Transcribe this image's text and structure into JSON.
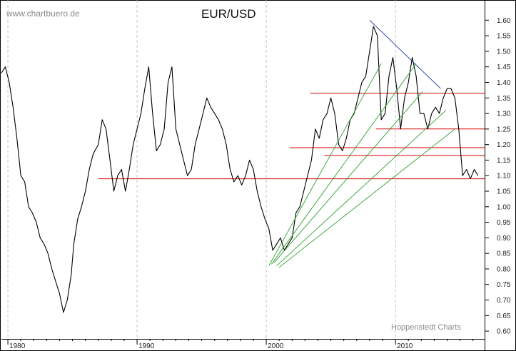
{
  "chart_data": {
    "type": "line",
    "title": "EUR/USD",
    "watermark": "www.chartbuero.de",
    "credit": "Hoppenstedt Charts",
    "xlabel": "",
    "ylabel": "",
    "xlim": [
      1979.5,
      2016.9
    ],
    "ylim": [
      0.575,
      1.665
    ],
    "grid": "vertical dashed lines at decade ticks",
    "y_ticks": [
      0.6,
      0.65,
      0.7,
      0.75,
      0.8,
      0.85,
      0.9,
      0.95,
      1.0,
      1.05,
      1.1,
      1.15,
      1.2,
      1.25,
      1.3,
      1.35,
      1.4,
      1.45,
      1.5,
      1.55,
      1.6
    ],
    "x_ticks": [
      {
        "value": 1980,
        "label": "1980"
      },
      {
        "value": 1990,
        "label": "1990"
      },
      {
        "value": 2000,
        "label": "2000"
      },
      {
        "value": 2010,
        "label": "2010"
      }
    ],
    "series": [
      {
        "color": "#000000",
        "x": [
          1979.5,
          1979.8,
          1980.1,
          1980.4,
          1980.7,
          1981.0,
          1981.3,
          1981.6,
          1981.9,
          1982.2,
          1982.5,
          1982.8,
          1983.1,
          1983.4,
          1983.7,
          1984.0,
          1984.3,
          1984.6,
          1984.9,
          1985.1,
          1985.4,
          1985.7,
          1986.0,
          1986.3,
          1986.6,
          1987.0,
          1987.3,
          1987.6,
          1987.9,
          1988.2,
          1988.5,
          1988.8,
          1989.1,
          1989.4,
          1989.7,
          1990.0,
          1990.3,
          1990.6,
          1990.9,
          1991.2,
          1991.5,
          1991.8,
          1992.1,
          1992.4,
          1992.7,
          1993.0,
          1993.3,
          1993.6,
          1993.9,
          1994.2,
          1994.5,
          1994.8,
          1995.1,
          1995.4,
          1995.7,
          1996.0,
          1996.3,
          1996.6,
          1996.9,
          1997.2,
          1997.5,
          1997.8,
          1998.1,
          1998.4,
          1998.7,
          1999.0,
          1999.3,
          1999.6,
          1999.9,
          2000.2,
          2000.5,
          2000.8,
          2001.1,
          2001.4,
          2001.7,
          2002.0,
          2002.3,
          2002.6,
          2002.9,
          2003.2,
          2003.5,
          2003.8,
          2004.1,
          2004.4,
          2004.7,
          2005.0,
          2005.3,
          2005.6,
          2005.9,
          2006.2,
          2006.5,
          2006.8,
          2007.1,
          2007.4,
          2007.7,
          2008.0,
          2008.3,
          2008.6,
          2008.9,
          2009.2,
          2009.5,
          2009.8,
          2010.1,
          2010.4,
          2010.7,
          2011.0,
          2011.3,
          2011.6,
          2011.9,
          2012.2,
          2012.5,
          2012.8,
          2013.1,
          2013.4,
          2013.7,
          2014.0,
          2014.3,
          2014.6,
          2014.9,
          2015.2,
          2015.5,
          2015.8,
          2016.1,
          2016.4
        ],
        "y": [
          1.43,
          1.45,
          1.4,
          1.32,
          1.22,
          1.1,
          1.08,
          1.0,
          0.98,
          0.95,
          0.9,
          0.88,
          0.85,
          0.8,
          0.76,
          0.72,
          0.66,
          0.7,
          0.78,
          0.88,
          0.96,
          1.0,
          1.05,
          1.12,
          1.17,
          1.2,
          1.28,
          1.25,
          1.15,
          1.05,
          1.1,
          1.12,
          1.05,
          1.12,
          1.2,
          1.25,
          1.3,
          1.38,
          1.45,
          1.3,
          1.18,
          1.2,
          1.25,
          1.4,
          1.45,
          1.25,
          1.2,
          1.15,
          1.1,
          1.12,
          1.2,
          1.25,
          1.3,
          1.35,
          1.32,
          1.3,
          1.28,
          1.25,
          1.2,
          1.12,
          1.08,
          1.1,
          1.07,
          1.1,
          1.15,
          1.12,
          1.05,
          1.0,
          0.96,
          0.93,
          0.86,
          0.88,
          0.9,
          0.86,
          0.88,
          0.9,
          0.98,
          1.0,
          1.05,
          1.1,
          1.15,
          1.25,
          1.22,
          1.28,
          1.3,
          1.35,
          1.3,
          1.2,
          1.18,
          1.22,
          1.28,
          1.3,
          1.35,
          1.4,
          1.42,
          1.5,
          1.58,
          1.55,
          1.28,
          1.3,
          1.42,
          1.48,
          1.38,
          1.25,
          1.35,
          1.4,
          1.48,
          1.42,
          1.3,
          1.3,
          1.25,
          1.3,
          1.32,
          1.3,
          1.35,
          1.38,
          1.38,
          1.35,
          1.25,
          1.1,
          1.12,
          1.09,
          1.12,
          1.1
        ]
      },
      {
        "color": "#d40000",
        "kind": "horizontal-level",
        "x": [
          1987.0,
          2016.9
        ],
        "y": [
          1.09,
          1.09
        ]
      },
      {
        "color": "#d40000",
        "kind": "horizontal-level",
        "x": [
          2004.5,
          2016.9
        ],
        "y": [
          1.165,
          1.165
        ]
      },
      {
        "color": "#d40000",
        "kind": "horizontal-level",
        "x": [
          2001.8,
          2016.9
        ],
        "y": [
          1.19,
          1.19
        ]
      },
      {
        "color": "#d40000",
        "kind": "horizontal-level",
        "x": [
          2008.5,
          2016.9
        ],
        "y": [
          1.25,
          1.25
        ]
      },
      {
        "color": "#d40000",
        "kind": "horizontal-level",
        "x": [
          2003.4,
          2016.9
        ],
        "y": [
          1.365,
          1.365
        ]
      },
      {
        "color": "#1a2ea8",
        "kind": "trendline",
        "x": [
          2008.0,
          2013.5
        ],
        "y": [
          1.6,
          1.38
        ]
      },
      {
        "color": "#2ca02c",
        "kind": "trendline",
        "x": [
          2000.2,
          2008.9
        ],
        "y": [
          0.81,
          1.46
        ]
      },
      {
        "color": "#2ca02c",
        "kind": "trendline",
        "x": [
          2000.4,
          2011.6
        ],
        "y": [
          0.815,
          1.46
        ]
      },
      {
        "color": "#2ca02c",
        "kind": "trendline",
        "x": [
          2000.6,
          2012.1
        ],
        "y": [
          0.82,
          1.37
        ]
      },
      {
        "color": "#2ca02c",
        "kind": "trendline",
        "x": [
          2000.8,
          2013.9
        ],
        "y": [
          0.81,
          1.31
        ]
      },
      {
        "color": "#2ca02c",
        "kind": "trendline",
        "x": [
          2001.0,
          2014.6
        ],
        "y": [
          0.805,
          1.25
        ]
      }
    ]
  }
}
